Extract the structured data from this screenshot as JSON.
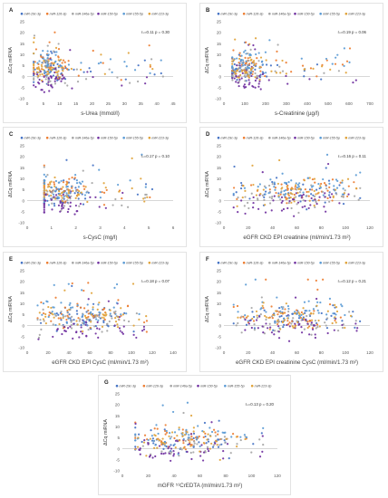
{
  "colors": {
    "miR-29c-3p": "#4472c4",
    "miR-126-3p": "#ed7d31",
    "miR-146a-5p": "#a5a5a5",
    "miR-150-5p": "#7030a0",
    "miR-155-5p": "#5b9bd5",
    "miR-223-3p": "#e0a33a"
  },
  "chart_data": [
    {
      "panel": "A",
      "type": "scatter",
      "legend": [
        "miR-29c-3p",
        "miR-126-3p",
        "miR-146a-5p",
        "miR-150-5p",
        "miR-155-5p",
        "miR-223-3p"
      ],
      "ylabel": "ΔCq miRNA",
      "xlabel": "s-Urea (mmol/l)",
      "annotation": "rₛ=0.11 p = 0.30",
      "xlim": [
        0,
        45
      ],
      "ylim": [
        -10,
        25
      ],
      "xticks": [
        0,
        5,
        10,
        15,
        20,
        25,
        30,
        35,
        40,
        45
      ],
      "yticks": [
        -10,
        -5,
        0,
        5,
        10,
        15,
        20,
        25
      ],
      "xmin_data": 2,
      "xmax_data": 42,
      "xcenter": 7,
      "xspread": 4
    },
    {
      "panel": "B",
      "type": "scatter",
      "legend": [
        "miR-29c-3p",
        "miR-126-3p",
        "miR-146a-5p",
        "miR-150-5p",
        "miR-155-5p",
        "miR-223-3p"
      ],
      "ylabel": "ΔCq miRNA",
      "xlabel": "s-Creatinine (µg/l)",
      "annotation": "rₛ=0.19 p = 0.06",
      "xlim": [
        0,
        700
      ],
      "ylim": [
        -10,
        25
      ],
      "xticks": [
        0,
        100,
        200,
        300,
        400,
        500,
        600,
        700
      ],
      "yticks": [
        -10,
        -5,
        0,
        5,
        10,
        15,
        20,
        25
      ],
      "xmin_data": 40,
      "xmax_data": 660,
      "xcenter": 100,
      "xspread": 60
    },
    {
      "panel": "C",
      "type": "scatter",
      "legend": [
        "miR-29c-3p",
        "miR-126-3p",
        "miR-146a-5p",
        "miR-150-5p",
        "miR-155-5p",
        "miR-223-3p"
      ],
      "ylabel": "ΔCq miRNA",
      "xlabel": "s-CysC (mg/l)",
      "annotation": "rₛ=0.17 p = 0.10",
      "xlim": [
        0,
        6
      ],
      "ylim": [
        -10,
        25
      ],
      "xticks": [
        0,
        1,
        2,
        3,
        4,
        5,
        6
      ],
      "yticks": [
        -10,
        -5,
        0,
        5,
        10,
        15,
        20,
        25
      ],
      "xmin_data": 0.7,
      "xmax_data": 5.2,
      "xcenter": 1.3,
      "xspread": 0.8
    },
    {
      "panel": "D",
      "type": "scatter",
      "legend": [
        "miR-29c-3p",
        "miR-126-3p",
        "miR-146a-5p",
        "miR-150-5p",
        "miR-155-5p",
        "miR-223-3p"
      ],
      "ylabel": "ΔCq miRNA",
      "xlabel": "eGFR CKD EPI creatinine (ml/min/1.73 m²)",
      "annotation": "rₛ=0.16 p = 0.11",
      "xlim": [
        0,
        120
      ],
      "ylim": [
        -10,
        25
      ],
      "xticks": [
        0,
        20,
        40,
        60,
        80,
        100,
        120
      ],
      "yticks": [
        -10,
        -5,
        0,
        5,
        10,
        15,
        20,
        25
      ],
      "xmin_data": 8,
      "xmax_data": 112,
      "xcenter": 60,
      "xspread": 30
    },
    {
      "panel": "E",
      "type": "scatter",
      "legend": [
        "miR-29c-3p",
        "miR-126-3p",
        "miR-146a-5p",
        "miR-150-5p",
        "miR-155-5p",
        "miR-223-3p"
      ],
      "ylabel": "ΔCq miRNA",
      "xlabel": "eGFR CKD EPI CysC (ml/min/1.73 m²)",
      "annotation": "rₛ=0.18 p = 0.07",
      "xlim": [
        0,
        140
      ],
      "ylim": [
        -10,
        25
      ],
      "xticks": [
        0,
        20,
        40,
        60,
        80,
        100,
        120,
        140
      ],
      "yticks": [
        -10,
        -5,
        0,
        5,
        10,
        15,
        20,
        25
      ],
      "xmin_data": 10,
      "xmax_data": 118,
      "xcenter": 55,
      "xspread": 28
    },
    {
      "panel": "F",
      "type": "scatter",
      "legend": [
        "miR-29c-3p",
        "miR-126-3p",
        "miR-146a-5p",
        "miR-150-5p",
        "miR-155-5p",
        "miR-223-3p"
      ],
      "ylabel": "ΔCq miRNA",
      "xlabel": "eGFR CKD EPI creatinine CysC (ml/min/1.73 m²)",
      "annotation": "rₛ=0.12 p = 0.21",
      "xlim": [
        0,
        120
      ],
      "ylim": [
        -10,
        25
      ],
      "xticks": [
        0,
        20,
        40,
        60,
        80,
        100,
        120
      ],
      "yticks": [
        -10,
        -5,
        0,
        5,
        10,
        15,
        20,
        25
      ],
      "xmin_data": 8,
      "xmax_data": 112,
      "xcenter": 55,
      "xspread": 28
    },
    {
      "panel": "G",
      "type": "scatter",
      "legend": [
        "miR-29c-3p",
        "miR-126-3p",
        "miR-146a-5p",
        "miR-150-5p",
        "miR-155-5p",
        "miR-223-3p"
      ],
      "ylabel": "ΔCq miRNA",
      "xlabel": "mGFR ⁵¹CrEDTA (ml/min/1.73 m²)",
      "annotation": "rₛ=0.13 p = 0.20",
      "xlim": [
        0,
        120
      ],
      "ylim": [
        -10,
        25
      ],
      "xticks": [
        0,
        20,
        40,
        60,
        80,
        100,
        120
      ],
      "yticks": [
        -10,
        -5,
        0,
        5,
        10,
        15,
        20,
        25
      ],
      "xmin_data": 10,
      "xmax_data": 110,
      "xcenter": 45,
      "xspread": 25
    }
  ]
}
